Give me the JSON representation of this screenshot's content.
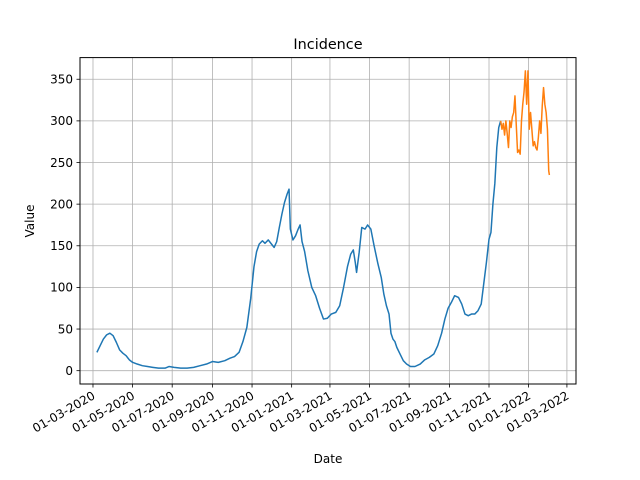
{
  "chart_data": {
    "type": "line",
    "title": "Incidence",
    "xlabel": "Date",
    "ylabel": "Value",
    "grid": true,
    "x_axis": {
      "kind": "date",
      "range": [
        "2020-02-10",
        "2022-03-15"
      ],
      "ticks": [
        {
          "date": "2020-03-01",
          "label": "01-03-2020"
        },
        {
          "date": "2020-05-01",
          "label": "01-05-2020"
        },
        {
          "date": "2020-07-01",
          "label": "01-07-2020"
        },
        {
          "date": "2020-09-01",
          "label": "01-09-2020"
        },
        {
          "date": "2020-11-01",
          "label": "01-11-2020"
        },
        {
          "date": "2021-01-01",
          "label": "01-01-2021"
        },
        {
          "date": "2021-03-01",
          "label": "01-03-2021"
        },
        {
          "date": "2021-05-01",
          "label": "01-05-2021"
        },
        {
          "date": "2021-07-01",
          "label": "01-07-2021"
        },
        {
          "date": "2021-09-01",
          "label": "01-09-2021"
        },
        {
          "date": "2021-11-01",
          "label": "01-11-2021"
        },
        {
          "date": "2022-01-01",
          "label": "01-01-2022"
        },
        {
          "date": "2022-03-01",
          "label": "01-03-2022"
        }
      ]
    },
    "y_axis": {
      "range": [
        -16,
        376
      ],
      "ticks": [
        0,
        50,
        100,
        150,
        200,
        250,
        300,
        350
      ]
    },
    "series": [
      {
        "color": "#1f77b4",
        "points": [
          [
            "2020-03-07",
            22
          ],
          [
            "2020-03-12",
            30
          ],
          [
            "2020-03-17",
            38
          ],
          [
            "2020-03-22",
            43
          ],
          [
            "2020-03-27",
            45
          ],
          [
            "2020-04-01",
            42
          ],
          [
            "2020-04-06",
            34
          ],
          [
            "2020-04-11",
            25
          ],
          [
            "2020-04-16",
            21
          ],
          [
            "2020-04-21",
            18
          ],
          [
            "2020-04-26",
            13
          ],
          [
            "2020-05-01",
            10
          ],
          [
            "2020-05-08",
            8
          ],
          [
            "2020-05-16",
            6
          ],
          [
            "2020-05-24",
            5
          ],
          [
            "2020-06-01",
            4
          ],
          [
            "2020-06-10",
            3
          ],
          [
            "2020-06-20",
            3
          ],
          [
            "2020-06-26",
            5
          ],
          [
            "2020-07-04",
            4
          ],
          [
            "2020-07-14",
            3
          ],
          [
            "2020-07-24",
            3
          ],
          [
            "2020-08-03",
            4
          ],
          [
            "2020-08-13",
            6
          ],
          [
            "2020-08-23",
            8
          ],
          [
            "2020-09-01",
            11
          ],
          [
            "2020-09-10",
            10
          ],
          [
            "2020-09-20",
            12
          ],
          [
            "2020-09-28",
            15
          ],
          [
            "2020-10-05",
            17
          ],
          [
            "2020-10-12",
            22
          ],
          [
            "2020-10-18",
            35
          ],
          [
            "2020-10-24",
            52
          ],
          [
            "2020-10-30",
            87
          ],
          [
            "2020-11-04",
            125
          ],
          [
            "2020-11-08",
            143
          ],
          [
            "2020-11-12",
            152
          ],
          [
            "2020-11-17",
            156
          ],
          [
            "2020-11-21",
            153
          ],
          [
            "2020-11-26",
            157
          ],
          [
            "2020-12-01",
            152
          ],
          [
            "2020-12-05",
            148
          ],
          [
            "2020-12-09",
            155
          ],
          [
            "2020-12-13",
            172
          ],
          [
            "2020-12-17",
            188
          ],
          [
            "2020-12-21",
            202
          ],
          [
            "2020-12-25",
            212
          ],
          [
            "2020-12-28",
            218
          ],
          [
            "2020-12-30",
            170
          ],
          [
            "2021-01-03",
            157
          ],
          [
            "2021-01-07",
            162
          ],
          [
            "2021-01-11",
            170
          ],
          [
            "2021-01-14",
            175
          ],
          [
            "2021-01-17",
            155
          ],
          [
            "2021-01-21",
            143
          ],
          [
            "2021-01-26",
            120
          ],
          [
            "2021-02-01",
            100
          ],
          [
            "2021-02-07",
            90
          ],
          [
            "2021-02-13",
            75
          ],
          [
            "2021-02-19",
            62
          ],
          [
            "2021-02-25",
            63
          ],
          [
            "2021-03-03",
            68
          ],
          [
            "2021-03-10",
            70
          ],
          [
            "2021-03-16",
            78
          ],
          [
            "2021-03-22",
            100
          ],
          [
            "2021-03-28",
            125
          ],
          [
            "2021-04-02",
            140
          ],
          [
            "2021-04-06",
            145
          ],
          [
            "2021-04-09",
            130
          ],
          [
            "2021-04-11",
            118
          ],
          [
            "2021-04-15",
            142
          ],
          [
            "2021-04-19",
            172
          ],
          [
            "2021-04-24",
            170
          ],
          [
            "2021-04-28",
            175
          ],
          [
            "2021-05-03",
            170
          ],
          [
            "2021-05-08",
            150
          ],
          [
            "2021-05-14",
            128
          ],
          [
            "2021-05-19",
            112
          ],
          [
            "2021-05-23",
            92
          ],
          [
            "2021-05-27",
            78
          ],
          [
            "2021-05-31",
            68
          ],
          [
            "2021-06-03",
            45
          ],
          [
            "2021-06-06",
            38
          ],
          [
            "2021-06-09",
            35
          ],
          [
            "2021-06-12",
            28
          ],
          [
            "2021-06-17",
            20
          ],
          [
            "2021-06-22",
            12
          ],
          [
            "2021-06-27",
            8
          ],
          [
            "2021-07-03",
            5
          ],
          [
            "2021-07-10",
            5
          ],
          [
            "2021-07-18",
            8
          ],
          [
            "2021-07-25",
            13
          ],
          [
            "2021-08-01",
            16
          ],
          [
            "2021-08-08",
            20
          ],
          [
            "2021-08-14",
            30
          ],
          [
            "2021-08-20",
            45
          ],
          [
            "2021-08-25",
            62
          ],
          [
            "2021-08-30",
            75
          ],
          [
            "2021-09-04",
            82
          ],
          [
            "2021-09-09",
            90
          ],
          [
            "2021-09-15",
            88
          ],
          [
            "2021-09-20",
            80
          ],
          [
            "2021-09-25",
            68
          ],
          [
            "2021-09-30",
            66
          ],
          [
            "2021-10-05",
            68
          ],
          [
            "2021-10-10",
            68
          ],
          [
            "2021-10-15",
            72
          ],
          [
            "2021-10-20",
            80
          ],
          [
            "2021-10-24",
            105
          ],
          [
            "2021-10-28",
            130
          ],
          [
            "2021-11-01",
            158
          ],
          [
            "2021-11-04",
            166
          ],
          [
            "2021-11-07",
            200
          ],
          [
            "2021-11-10",
            225
          ],
          [
            "2021-11-13",
            268
          ],
          [
            "2021-11-16",
            292
          ],
          [
            "2021-11-19",
            300
          ]
        ]
      },
      {
        "color": "#ff7f0e",
        "points": [
          [
            "2021-11-19",
            300
          ],
          [
            "2021-11-21",
            290
          ],
          [
            "2021-11-23",
            297
          ],
          [
            "2021-11-25",
            283
          ],
          [
            "2021-11-27",
            300
          ],
          [
            "2021-11-29",
            285
          ],
          [
            "2021-12-01",
            268
          ],
          [
            "2021-12-03",
            300
          ],
          [
            "2021-12-05",
            292
          ],
          [
            "2021-12-07",
            305
          ],
          [
            "2021-12-09",
            310
          ],
          [
            "2021-12-11",
            330
          ],
          [
            "2021-12-13",
            295
          ],
          [
            "2021-12-15",
            262
          ],
          [
            "2021-12-17",
            265
          ],
          [
            "2021-12-19",
            260
          ],
          [
            "2021-12-21",
            300
          ],
          [
            "2021-12-23",
            320
          ],
          [
            "2021-12-25",
            335
          ],
          [
            "2021-12-27",
            360
          ],
          [
            "2021-12-29",
            320
          ],
          [
            "2021-12-31",
            360
          ],
          [
            "2022-01-02",
            290
          ],
          [
            "2022-01-04",
            310
          ],
          [
            "2022-01-06",
            290
          ],
          [
            "2022-01-08",
            270
          ],
          [
            "2022-01-10",
            275
          ],
          [
            "2022-01-12",
            268
          ],
          [
            "2022-01-14",
            265
          ],
          [
            "2022-01-16",
            280
          ],
          [
            "2022-01-18",
            300
          ],
          [
            "2022-01-20",
            285
          ],
          [
            "2022-01-22",
            318
          ],
          [
            "2022-01-24",
            340
          ],
          [
            "2022-01-26",
            320
          ],
          [
            "2022-01-28",
            310
          ],
          [
            "2022-01-30",
            290
          ],
          [
            "2022-02-01",
            240
          ],
          [
            "2022-02-02",
            235
          ]
        ]
      }
    ]
  }
}
